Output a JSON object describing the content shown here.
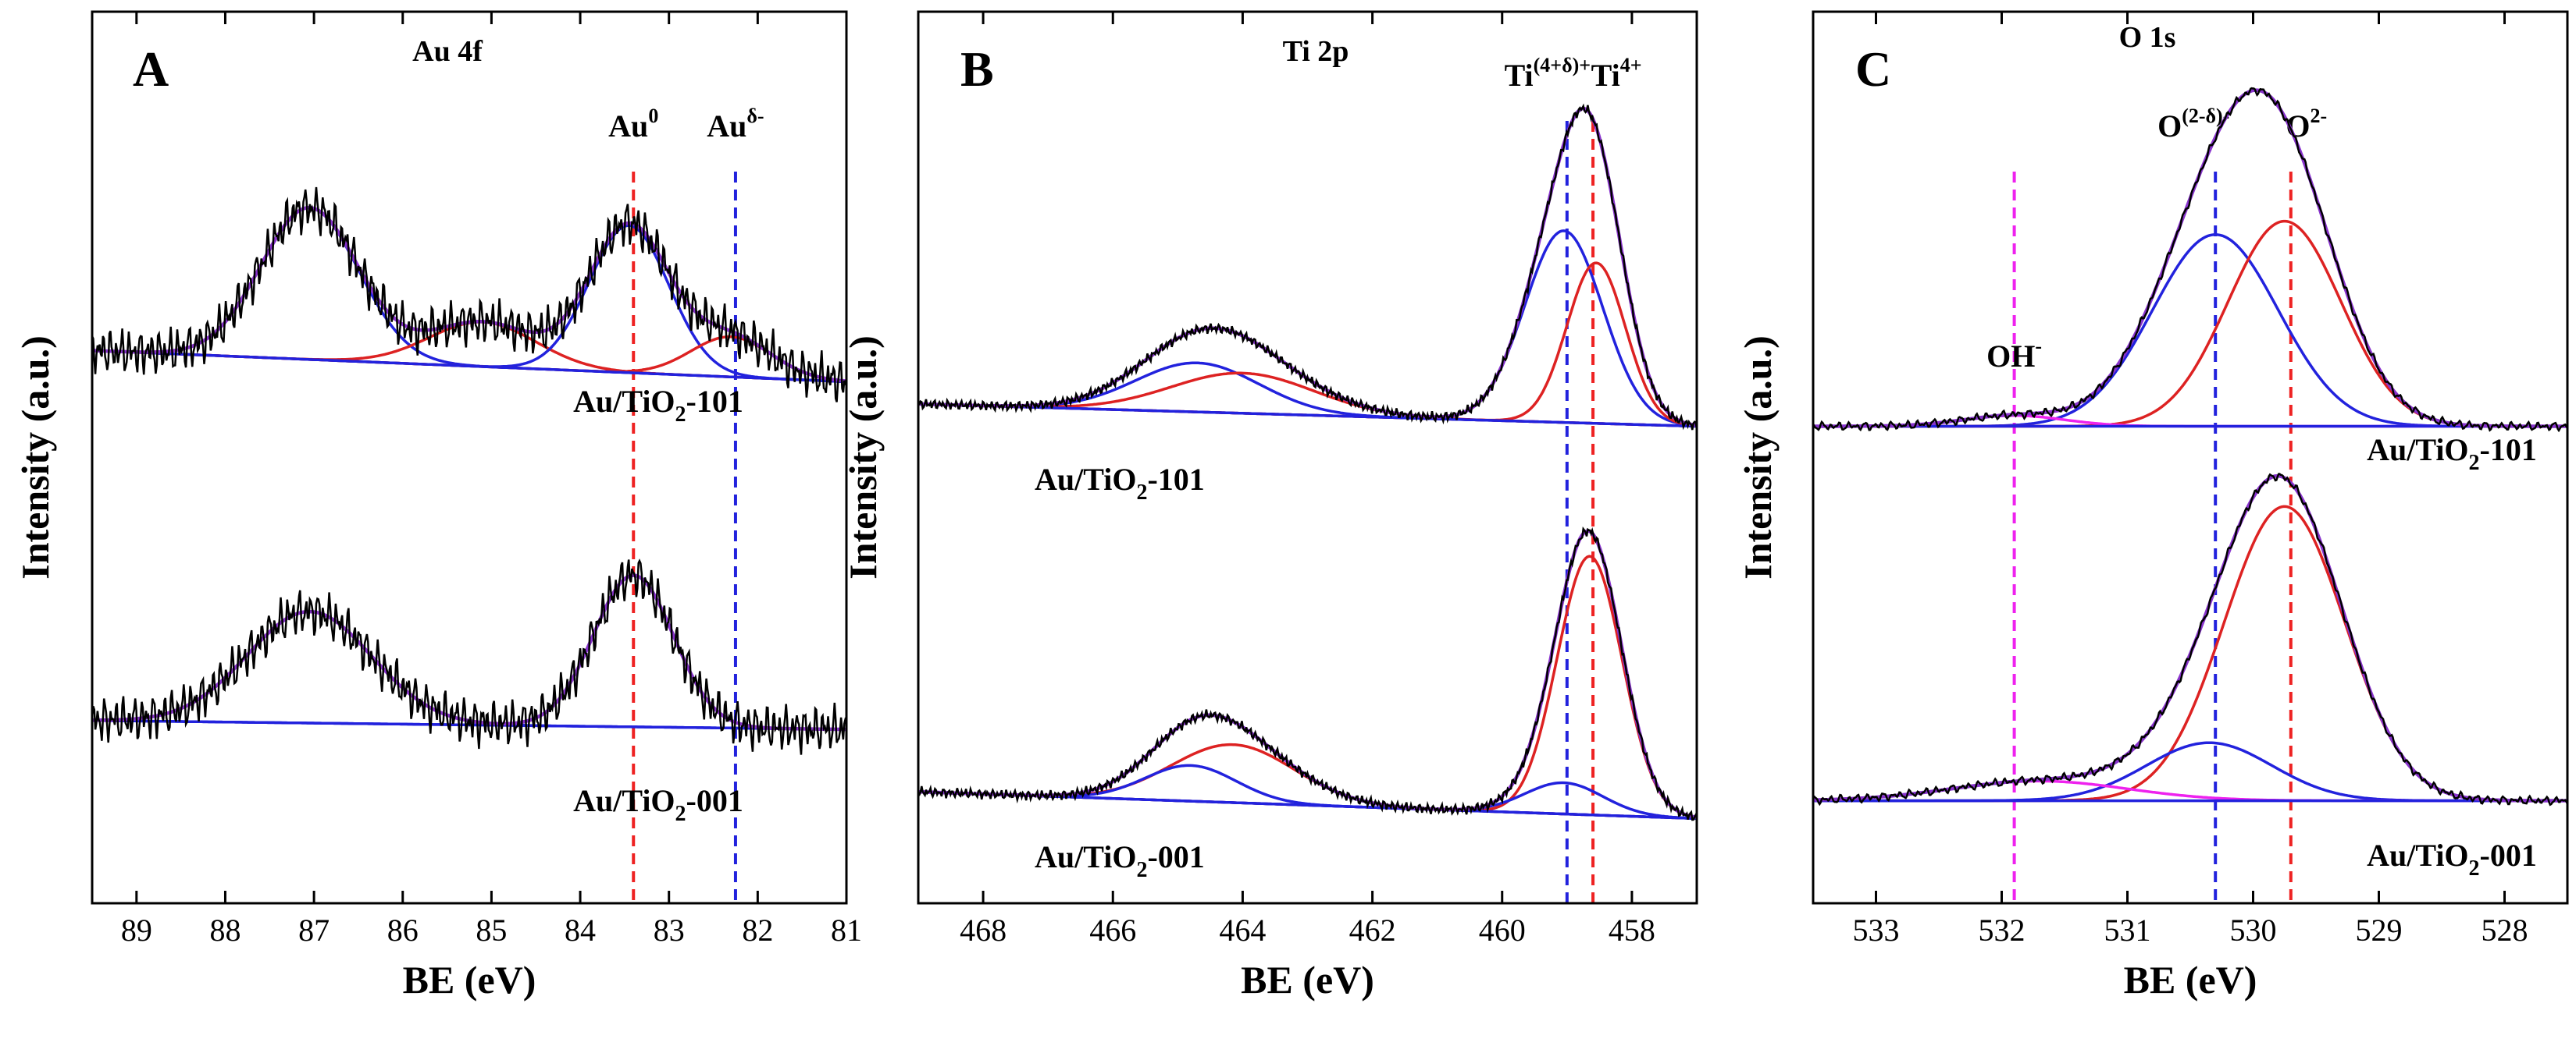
{
  "chart_data": [
    {
      "type": "line",
      "panel_letter": "A",
      "title": "Au 4f",
      "xlabel": "BE (eV)",
      "ylabel": "Intensity (a.u.)",
      "xlim": [
        89.5,
        81.0
      ],
      "x_reversed": true,
      "ylim": [
        0,
        1
      ],
      "yticks_shown": false,
      "xticks": [
        "89",
        "88",
        "87",
        "86",
        "85",
        "84",
        "83",
        "82",
        "81"
      ],
      "xtick_values": [
        89,
        88,
        87,
        86,
        85,
        84,
        83,
        82,
        81
      ],
      "reference_lines": [
        {
          "x": 83.4,
          "label": "Au",
          "sup": "0",
          "color": "#ee2222"
        },
        {
          "x": 82.25,
          "label": "Au",
          "sup": "δ-",
          "color": "#2222dd"
        }
      ],
      "traces": [
        {
          "name": "Au/TiO2-101",
          "label_main": "Au/TiO",
          "label_sub": "2",
          "label_rest": "-101",
          "baseline": [
            0.62,
            0.585
          ],
          "noise": 0.028,
          "peaks": [
            {
              "center": 87.05,
              "height": 0.17,
              "width": 0.55,
              "color": "#2222dd"
            },
            {
              "center": 85.1,
              "height": 0.05,
              "width": 0.6,
              "color": "#dd2222"
            },
            {
              "center": 83.45,
              "height": 0.165,
              "width": 0.45,
              "color": "#2222dd"
            },
            {
              "center": 82.3,
              "height": 0.045,
              "width": 0.45,
              "color": "#dd2222"
            }
          ]
        },
        {
          "name": "Au/TiO2-001",
          "label_main": "Au/TiO",
          "label_sub": "2",
          "label_rest": "-001",
          "baseline": [
            0.205,
            0.195
          ],
          "noise": 0.028,
          "peaks": [
            {
              "center": 87.05,
              "height": 0.125,
              "width": 0.7,
              "color": "#2222dd"
            },
            {
              "center": 83.4,
              "height": 0.17,
              "width": 0.45,
              "color": "#2222dd"
            }
          ]
        }
      ]
    },
    {
      "type": "line",
      "panel_letter": "B",
      "title": "Ti 2p",
      "xlabel": "BE (eV)",
      "ylabel": "Intensity (a.u.)",
      "xlim": [
        469.0,
        457.0
      ],
      "x_reversed": true,
      "ylim": [
        0,
        1
      ],
      "yticks_shown": false,
      "xticks": [
        "468",
        "466",
        "464",
        "462",
        "460",
        "458"
      ],
      "xtick_values": [
        468,
        466,
        464,
        462,
        460,
        458
      ],
      "reference_lines": [
        {
          "x": 459.0,
          "label": "Ti",
          "sup": "(4+δ)+",
          "color": "#2222dd"
        },
        {
          "x": 458.6,
          "label": "Ti",
          "sup": "4+",
          "color": "#ee2222"
        }
      ],
      "traces": [
        {
          "name": "Au/TiO2-101",
          "label_main": "Au/TiO",
          "label_sub": "2",
          "label_rest": "-101",
          "baseline": [
            0.56,
            0.535
          ],
          "noise": 0.006,
          "peaks": [
            {
              "center": 459.05,
              "height": 0.215,
              "width": 0.6,
              "color": "#2222dd"
            },
            {
              "center": 458.55,
              "height": 0.18,
              "width": 0.45,
              "color": "#dd2222"
            },
            {
              "center": 464.7,
              "height": 0.055,
              "width": 0.95,
              "color": "#2222dd"
            },
            {
              "center": 464.0,
              "height": 0.045,
              "width": 1.1,
              "color": "#dd2222"
            }
          ]
        },
        {
          "name": "Au/TiO2-001",
          "label_main": "Au/TiO",
          "label_sub": "2",
          "label_rest": "-001",
          "baseline": [
            0.125,
            0.095
          ],
          "noise": 0.006,
          "peaks": [
            {
              "center": 458.65,
              "height": 0.29,
              "width": 0.5,
              "color": "#dd2222"
            },
            {
              "center": 459.05,
              "height": 0.035,
              "width": 0.6,
              "color": "#2222dd"
            },
            {
              "center": 464.15,
              "height": 0.065,
              "width": 0.95,
              "color": "#dd2222"
            },
            {
              "center": 464.8,
              "height": 0.04,
              "width": 0.7,
              "color": "#2222dd"
            }
          ]
        }
      ]
    },
    {
      "type": "line",
      "panel_letter": "C",
      "title": "O 1s",
      "xlabel": "BE (eV)",
      "ylabel": "Intensity (a.u.)",
      "xlim": [
        533.5,
        527.5
      ],
      "x_reversed": true,
      "ylim": [
        0,
        1
      ],
      "yticks_shown": false,
      "xticks": [
        "533",
        "532",
        "531",
        "530",
        "529",
        "528"
      ],
      "xtick_values": [
        533,
        532,
        531,
        530,
        529,
        528
      ],
      "reference_lines": [
        {
          "x": 531.9,
          "label": "OH",
          "sup": "-",
          "color": "#ee22ee"
        },
        {
          "x": 530.3,
          "label": "O",
          "sup": "(2-δ)-",
          "color": "#2222dd"
        },
        {
          "x": 529.7,
          "label": "O",
          "sup": "2-",
          "color": "#ee2222"
        }
      ],
      "traces": [
        {
          "name": "Au/TiO2-101",
          "label_main": "Au/TiO",
          "label_sub": "2",
          "label_rest": "-101",
          "baseline": [
            0.535,
            0.535
          ],
          "noise": 0.005,
          "peaks": [
            {
              "center": 530.3,
              "height": 0.215,
              "width": 0.5,
              "color": "#2222dd"
            },
            {
              "center": 529.75,
              "height": 0.23,
              "width": 0.45,
              "color": "#dd2222"
            },
            {
              "center": 531.9,
              "height": 0.012,
              "width": 0.4,
              "color": "#ee22ee"
            }
          ]
        },
        {
          "name": "Au/TiO2-001",
          "label_main": "Au/TiO",
          "label_sub": "2",
          "label_rest": "-001",
          "baseline": [
            0.115,
            0.115
          ],
          "noise": 0.005,
          "peaks": [
            {
              "center": 529.75,
              "height": 0.33,
              "width": 0.48,
              "color": "#dd2222"
            },
            {
              "center": 530.35,
              "height": 0.065,
              "width": 0.5,
              "color": "#2222dd"
            },
            {
              "center": 531.7,
              "height": 0.022,
              "width": 0.7,
              "color": "#ee22ee"
            }
          ]
        }
      ]
    }
  ]
}
